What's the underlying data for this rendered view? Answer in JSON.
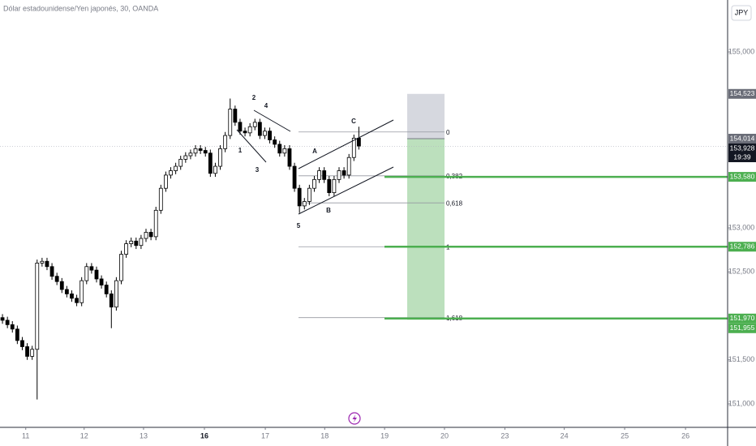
{
  "chart_data": {
    "type": "candlestick",
    "title": "Dólar estadounidense/Yen japonés, 30, OANDA",
    "currency": "JPY",
    "xlim": [
      0,
      147
    ],
    "xticks": [
      {
        "value": 5.2,
        "label": "11"
      },
      {
        "value": 17,
        "label": "12"
      },
      {
        "value": 29,
        "label": "13"
      },
      {
        "value": 41.3,
        "label": "16"
      },
      {
        "value": 53.6,
        "label": "17"
      },
      {
        "value": 65.6,
        "label": "18"
      },
      {
        "value": 77.7,
        "label": "19"
      },
      {
        "value": 89.8,
        "label": "20"
      },
      {
        "value": 102,
        "label": "23"
      },
      {
        "value": 114,
        "label": "24"
      },
      {
        "value": 126.2,
        "label": "25"
      },
      {
        "value": 138.5,
        "label": "26"
      }
    ],
    "ylim": [
      150733,
      155590
    ],
    "yticks": [
      {
        "value": 155000,
        "label": "155,000"
      },
      {
        "value": 153000,
        "label": "153,000"
      },
      {
        "value": 152500,
        "label": "152,500"
      },
      {
        "value": 151500,
        "label": "151,500"
      },
      {
        "value": 151000,
        "label": "151,000"
      }
    ],
    "up_color": "#ffffff",
    "down_color": "#000000",
    "border_color": "#000000",
    "candles": [
      [
        151980,
        152020,
        151910,
        151950
      ],
      [
        151950,
        151990,
        151860,
        151900
      ],
      [
        151900,
        151940,
        151810,
        151850
      ],
      [
        151850,
        151890,
        151680,
        151720
      ],
      [
        151720,
        151760,
        151610,
        151650
      ],
      [
        151650,
        151690,
        151500,
        151540
      ],
      [
        151540,
        151660,
        151500,
        151620
      ],
      [
        151620,
        152640,
        151050,
        152600
      ],
      [
        152600,
        152660,
        152560,
        152620
      ],
      [
        152620,
        152660,
        152520,
        152560
      ],
      [
        152560,
        152600,
        152410,
        152450
      ],
      [
        152450,
        152490,
        152350,
        152390
      ],
      [
        152390,
        152430,
        152260,
        152300
      ],
      [
        152300,
        152340,
        152210,
        152250
      ],
      [
        152250,
        152290,
        152160,
        152200
      ],
      [
        152200,
        152240,
        152110,
        152150
      ],
      [
        152150,
        152440,
        152110,
        152400
      ],
      [
        152400,
        152600,
        152360,
        152560
      ],
      [
        152560,
        152600,
        152480,
        152520
      ],
      [
        152520,
        152560,
        152380,
        152420
      ],
      [
        152420,
        152460,
        152310,
        152350
      ],
      [
        152350,
        152390,
        152210,
        152250
      ],
      [
        152250,
        152290,
        151860,
        152100
      ],
      [
        152100,
        152440,
        152060,
        152400
      ],
      [
        152400,
        152740,
        152360,
        152700
      ],
      [
        152700,
        152860,
        152660,
        152820
      ],
      [
        152820,
        152890,
        152780,
        152850
      ],
      [
        152850,
        152890,
        152760,
        152800
      ],
      [
        152800,
        152920,
        152760,
        152880
      ],
      [
        152880,
        152990,
        152840,
        152950
      ],
      [
        152950,
        152990,
        152860,
        152900
      ],
      [
        152900,
        153240,
        152860,
        153200
      ],
      [
        153200,
        153490,
        153160,
        153450
      ],
      [
        153450,
        153640,
        153410,
        153600
      ],
      [
        153600,
        153690,
        153560,
        153650
      ],
      [
        153650,
        153740,
        153610,
        153700
      ],
      [
        153700,
        153820,
        153660,
        153780
      ],
      [
        153780,
        153860,
        153740,
        153820
      ],
      [
        153820,
        153890,
        153780,
        153850
      ],
      [
        153850,
        153940,
        153810,
        153900
      ],
      [
        153900,
        153940,
        153840,
        153880
      ],
      [
        153880,
        153920,
        153810,
        153850
      ],
      [
        153850,
        153890,
        153580,
        153620
      ],
      [
        153620,
        153740,
        153580,
        153700
      ],
      [
        153700,
        153940,
        153660,
        153900
      ],
      [
        153900,
        154090,
        153860,
        154050
      ],
      [
        154050,
        154470,
        154010,
        154350
      ],
      [
        154350,
        154390,
        154160,
        154200
      ],
      [
        154200,
        154240,
        154060,
        154100
      ],
      [
        154100,
        154140,
        154040,
        154080
      ],
      [
        154080,
        154190,
        154040,
        154150
      ],
      [
        154150,
        154240,
        154110,
        154200
      ],
      [
        154200,
        154240,
        154010,
        154050
      ],
      [
        154050,
        154140,
        154010,
        154100
      ],
      [
        154100,
        154140,
        153960,
        154000
      ],
      [
        154000,
        154040,
        153910,
        153950
      ],
      [
        153950,
        153990,
        153810,
        153850
      ],
      [
        153850,
        153940,
        153810,
        153900
      ],
      [
        153900,
        153940,
        153660,
        153700
      ],
      [
        153700,
        153740,
        153410,
        153450
      ],
      [
        153450,
        153490,
        153170,
        153250
      ],
      [
        153250,
        153340,
        153210,
        153300
      ],
      [
        153300,
        153490,
        153260,
        153450
      ],
      [
        153450,
        153590,
        153410,
        153550
      ],
      [
        153550,
        153690,
        153510,
        153650
      ],
      [
        153650,
        153690,
        153510,
        153550
      ],
      [
        153550,
        153590,
        153360,
        153400
      ],
      [
        153400,
        153590,
        153360,
        153550
      ],
      [
        153550,
        153690,
        153510,
        153650
      ],
      [
        153650,
        153690,
        153560,
        153600
      ],
      [
        153600,
        153840,
        153560,
        153800
      ],
      [
        153800,
        154060,
        153760,
        154020
      ],
      [
        154020,
        154150,
        153890,
        153930
      ]
    ],
    "wave_labels": [
      "2",
      "4",
      "1",
      "3",
      "5",
      "A",
      "B",
      "C"
    ],
    "fib": {
      "price_0": 154090,
      "price_1": 152786,
      "levels": [
        0,
        {
          "value": 0.382,
          "label": "0,382"
        },
        {
          "value": 0.618,
          "label": "0,618"
        },
        1,
        {
          "value": 1.618,
          "label": "1,618"
        }
      ]
    },
    "position": {
      "top": 154523,
      "entry": 154014,
      "bottom": 151955
    },
    "target_lines": [
      153580,
      152786,
      151970
    ],
    "target_color": "#4caf50",
    "price_tags": [
      {
        "value": 154523,
        "label": "154,523",
        "color": "#6a6d78"
      },
      {
        "value": 154014,
        "label": "154,014",
        "color": "#6a6d78"
      },
      {
        "value": 153928,
        "label": "153,928",
        "color": "#131722",
        "note": "19:39"
      },
      {
        "value": 153580,
        "label": "153,580",
        "color": "#4caf50"
      },
      {
        "value": 152786,
        "label": "152,786",
        "color": "#4caf50"
      },
      {
        "value": 151970,
        "label": "151,970",
        "color": "#4caf50"
      },
      {
        "value": 151955,
        "label": "151,955",
        "color": "#4caf50"
      }
    ]
  }
}
